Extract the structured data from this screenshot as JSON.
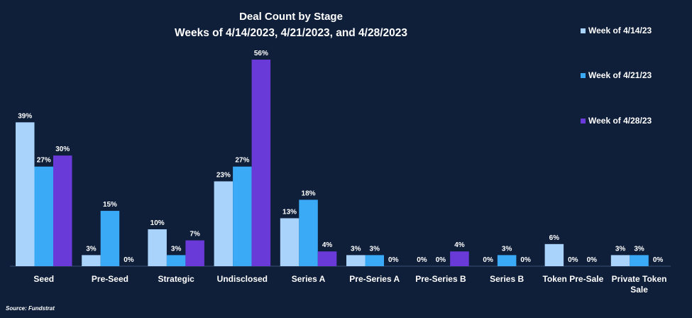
{
  "chart_data": {
    "type": "bar",
    "title": "Deal Count by Stage",
    "subtitle": "Weeks of 4/14/2023, 4/21/2023, and 4/28/2023",
    "categories": [
      "Seed",
      "Pre-Seed",
      "Strategic",
      "Undisclosed",
      "Series A",
      "Pre-Series A",
      "Pre-Series B",
      "Series B",
      "Token Pre-Sale",
      "Private Token Sale"
    ],
    "series": [
      {
        "name": "Week of 4/14/23",
        "color": "#a9d3fb",
        "values": [
          39,
          3,
          10,
          23,
          13,
          3,
          0,
          0,
          6,
          3
        ]
      },
      {
        "name": "Week of 4/21/23",
        "color": "#3aaaf7",
        "values": [
          27,
          15,
          3,
          27,
          18,
          3,
          0,
          3,
          0,
          3
        ]
      },
      {
        "name": "Week of 4/28/23",
        "color": "#6a3ad8",
        "values": [
          30,
          0,
          7,
          56,
          4,
          0,
          4,
          0,
          0,
          0
        ]
      }
    ],
    "value_suffix": "%",
    "ylim": [
      0,
      56
    ],
    "grid": false,
    "legend_position": "right"
  },
  "source": "Source: Fundstrat"
}
